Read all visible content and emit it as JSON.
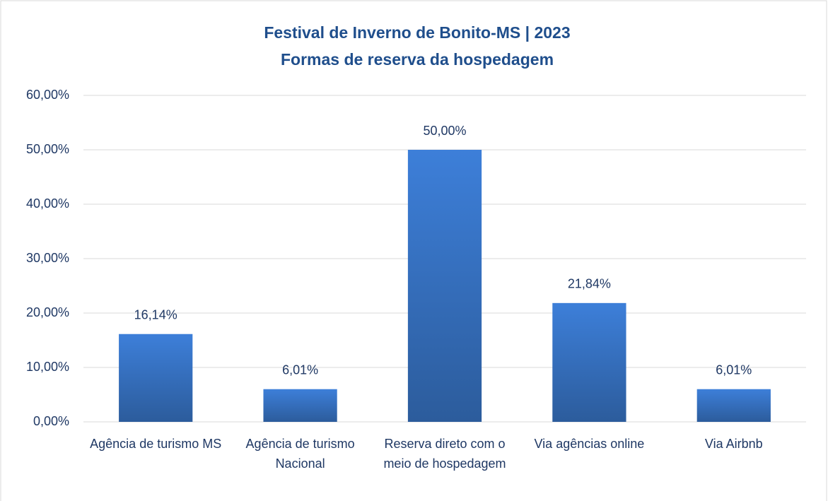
{
  "chart_data": {
    "type": "bar",
    "title": [
      "Festival de Inverno de Bonito-MS | 2023",
      "Formas de reserva da hospedagem"
    ],
    "categories": [
      "Agência de turismo MS",
      "Agência de turismo Nacional",
      "Reserva direto com o meio de hospedagem",
      "Via agências online",
      "Via Airbnb"
    ],
    "values": [
      16.14,
      6.01,
      50.0,
      21.84,
      6.01
    ],
    "value_labels": [
      "16,14%",
      "6,01%",
      "50,00%",
      "21,84%",
      "6,01%"
    ],
    "color": "#3a78cf",
    "ylim": [
      0,
      60
    ],
    "yticks": [
      {
        "value": 0,
        "label": "0,00%"
      },
      {
        "value": 10,
        "label": "10,00%"
      },
      {
        "value": 20,
        "label": "20,00%"
      },
      {
        "value": 30,
        "label": "30,00%"
      },
      {
        "value": 40,
        "label": "40,00%"
      },
      {
        "value": 50,
        "label": "50,00%"
      },
      {
        "value": 60,
        "label": "60,00%"
      }
    ],
    "grid": true
  }
}
